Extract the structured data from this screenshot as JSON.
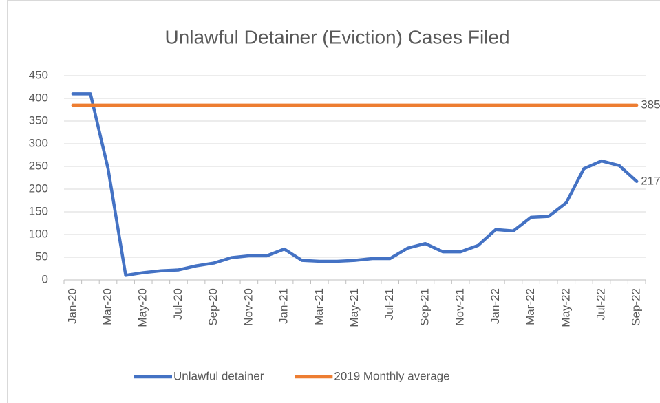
{
  "chart_data": {
    "type": "line",
    "title": "Unlawful Detainer (Eviction) Cases Filed",
    "categories": [
      "Jan-20",
      null,
      "Mar-20",
      null,
      "May-20",
      null,
      "Jul-20",
      null,
      "Sep-20",
      null,
      "Nov-20",
      null,
      "Jan-21",
      null,
      "Mar-21",
      null,
      "May-21",
      null,
      "Jul-21",
      null,
      "Sep-21",
      null,
      "Nov-21",
      null,
      "Jan-22",
      null,
      "Mar-22",
      null,
      "May-22",
      null,
      "Jul-22",
      null,
      "Sep-22"
    ],
    "series": [
      {
        "name": "Unlawful detainer",
        "color": "#4472c4",
        "values": [
          410,
          410,
          245,
          10,
          16,
          20,
          22,
          31,
          37,
          49,
          53,
          53,
          68,
          43,
          41,
          41,
          43,
          47,
          47,
          70,
          80,
          62,
          62,
          76,
          111,
          108,
          138,
          140,
          170,
          245,
          262,
          252,
          217
        ]
      },
      {
        "name": "2019 Monthly average",
        "color": "#ed7d31",
        "values": [
          385,
          385,
          385,
          385,
          385,
          385,
          385,
          385,
          385,
          385,
          385,
          385,
          385,
          385,
          385,
          385,
          385,
          385,
          385,
          385,
          385,
          385,
          385,
          385,
          385,
          385,
          385,
          385,
          385,
          385,
          385,
          385,
          385
        ]
      }
    ],
    "ylim": [
      0,
      450
    ],
    "yticks": [
      0,
      50,
      100,
      150,
      200,
      250,
      300,
      350,
      400,
      450
    ],
    "grid": true,
    "legend": "bottom"
  }
}
